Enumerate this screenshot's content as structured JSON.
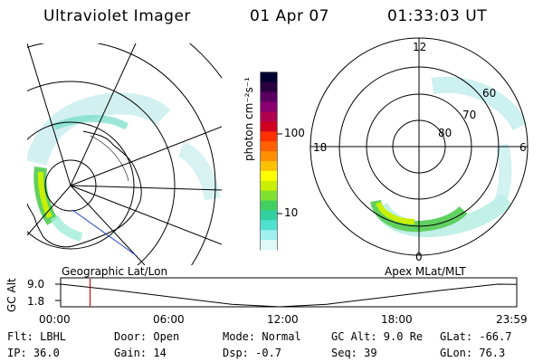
{
  "header": {
    "title": "Ultraviolet Imager",
    "date": "01 Apr 07",
    "time": "01:33:03 UT"
  },
  "left_panel": {
    "label": "Geographic Lat/Lon"
  },
  "right_panel": {
    "label": "Apex MLat/MLT",
    "mlt_labels": [
      "12",
      "18",
      "6",
      "0"
    ],
    "lat_labels": [
      "60",
      "70",
      "80"
    ]
  },
  "colorbar": {
    "unit_label": "photon cm⁻²s⁻¹",
    "ticks": [
      "100",
      "10"
    ],
    "colors": [
      "#000030",
      "#2a0040",
      "#5a0060",
      "#8a0070",
      "#b00050",
      "#d00020",
      "#ff3000",
      "#ff6000",
      "#ff9000",
      "#ffc000",
      "#ffff00",
      "#c8f000",
      "#80e030",
      "#40d060",
      "#30d0a0",
      "#50e0d0",
      "#a0f0f0",
      "#e0f8f8"
    ]
  },
  "altitude_plot": {
    "ylabel": "GC Alt",
    "yticks": [
      "9.0",
      "1.8"
    ],
    "xticks": [
      "00:00",
      "06:00",
      "12:00",
      "18:00",
      "23:59"
    ],
    "marker_time_hours": 1.55,
    "orbit_hours": [
      0,
      3,
      6,
      9,
      11.5,
      14,
      17,
      20,
      23,
      23.98
    ],
    "orbit_alt": [
      9.0,
      7.0,
      4.8,
      2.6,
      1.8,
      2.6,
      4.8,
      7.0,
      9.0,
      8.9
    ]
  },
  "footer": {
    "flt": "Flt: LBHL",
    "ip": "IP: 36.0",
    "door": "Door: Open",
    "gain": "Gain: 14",
    "mode": "Mode: Normal",
    "dsp": "Dsp:   -0.7",
    "gcalt": "GC Alt: 9.0 Re",
    "seq": "Seq: 39",
    "glat": "GLat: -66.7",
    "glon": "GLon:  76.3"
  }
}
